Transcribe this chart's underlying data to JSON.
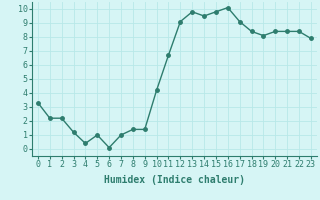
{
  "x": [
    0,
    1,
    2,
    3,
    4,
    5,
    6,
    7,
    8,
    9,
    10,
    11,
    12,
    13,
    14,
    15,
    16,
    17,
    18,
    19,
    20,
    21,
    22,
    23
  ],
  "y": [
    3.3,
    2.2,
    2.2,
    1.2,
    0.4,
    1.0,
    0.1,
    1.0,
    1.4,
    1.4,
    4.2,
    6.7,
    9.1,
    9.8,
    9.5,
    9.8,
    10.1,
    9.1,
    8.4,
    8.1,
    8.4,
    8.4,
    8.4,
    7.9
  ],
  "line_color": "#2e7d6e",
  "bg_color": "#d6f5f5",
  "grid_color": "#b8e8e8",
  "xlabel": "Humidex (Indice chaleur)",
  "xlim": [
    -0.5,
    23.5
  ],
  "ylim": [
    -0.5,
    10.5
  ],
  "xticks": [
    0,
    1,
    2,
    3,
    4,
    5,
    6,
    7,
    8,
    9,
    10,
    11,
    12,
    13,
    14,
    15,
    16,
    17,
    18,
    19,
    20,
    21,
    22,
    23
  ],
  "yticks": [
    0,
    1,
    2,
    3,
    4,
    5,
    6,
    7,
    8,
    9,
    10
  ],
  "xlabel_fontsize": 7,
  "tick_fontsize": 6,
  "marker_size": 2.5,
  "line_width": 1.0,
  "tick_color": "#2e7d6e",
  "spine_color": "#2e7d6e"
}
